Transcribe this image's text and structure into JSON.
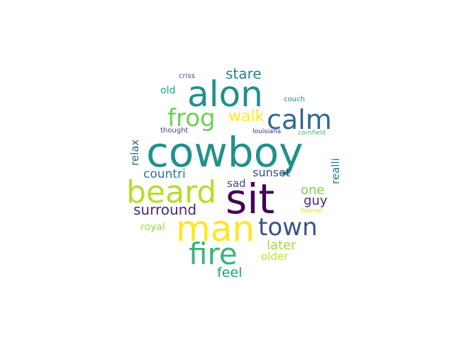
{
  "words": [
    {
      "text": "cowboy",
      "color": "#21918c"
    },
    {
      "text": "sit",
      "color": "#440154"
    },
    {
      "text": "alon",
      "color": "#21908d"
    },
    {
      "text": "beard",
      "color": "#b5de2b"
    },
    {
      "text": "man",
      "color": "#fde725"
    },
    {
      "text": "fire",
      "color": "#35b779"
    },
    {
      "text": "calm",
      "color": "#31688e"
    },
    {
      "text": "frog",
      "color": "#6ece58"
    },
    {
      "text": "town",
      "color": "#3b528b"
    },
    {
      "text": "walk",
      "color": "#fde725"
    },
    {
      "text": "stare",
      "color": "#26828e"
    },
    {
      "text": "surround",
      "color": "#482878"
    },
    {
      "text": "countri",
      "color": "#2c728e"
    },
    {
      "text": "sunset",
      "color": "#3e4a89"
    },
    {
      "text": "one",
      "color": "#7ad151"
    },
    {
      "text": "guy",
      "color": "#482777"
    },
    {
      "text": "sad",
      "color": "#414487"
    },
    {
      "text": "feel",
      "color": "#1f9e89"
    },
    {
      "text": "later",
      "color": "#9fda3a"
    },
    {
      "text": "older",
      "color": "#c2df23"
    },
    {
      "text": "royal",
      "color": "#a0da39"
    },
    {
      "text": "old",
      "color": "#20a486"
    },
    {
      "text": "relax",
      "color": "#33638d"
    },
    {
      "text": "realli",
      "color": "#2a788e"
    },
    {
      "text": "criss",
      "color": "#3b528b"
    },
    {
      "text": "couch",
      "color": "#24868e"
    },
    {
      "text": "thought",
      "color": "#433e85"
    },
    {
      "text": "louisiana",
      "color": "#472d7b"
    },
    {
      "text": "cornfield",
      "color": "#3fbc73"
    },
    {
      "text": "flannel",
      "color": "#d8e219"
    }
  ]
}
